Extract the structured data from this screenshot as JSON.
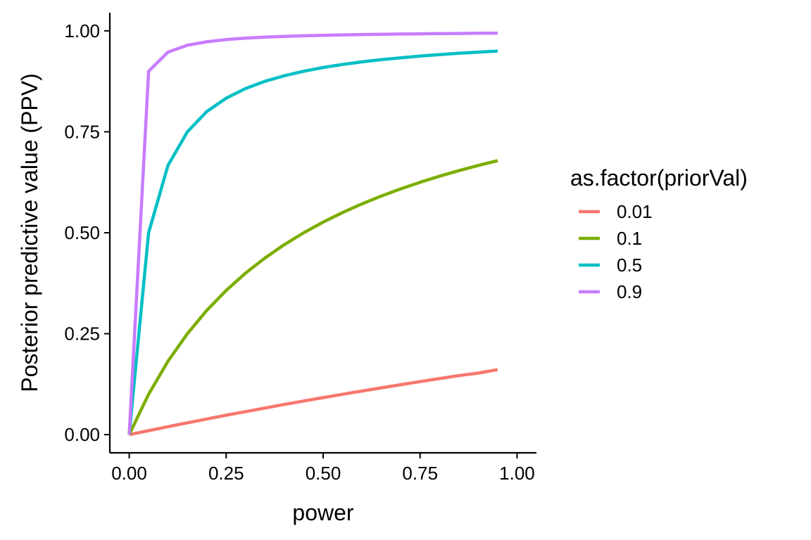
{
  "chart_data": {
    "type": "line",
    "xlabel": "power",
    "ylabel": "Posterior predictive value (PPV)",
    "xlim": [
      -0.05,
      1.05
    ],
    "ylim": [
      -0.045,
      1.045
    ],
    "x_ticks": [
      0,
      0.25,
      0.5,
      0.75,
      1
    ],
    "x_tick_labels": [
      "0.00",
      "0.25",
      "0.50",
      "0.75",
      "1.00"
    ],
    "y_ticks": [
      0,
      0.25,
      0.5,
      0.75,
      1
    ],
    "y_tick_labels": [
      "0.00",
      "0.25",
      "0.50",
      "0.75",
      "1.00"
    ],
    "grid": false,
    "legend": {
      "title": "as.factor(priorVal)",
      "position": "right"
    },
    "x": [
      0,
      0.05,
      0.1,
      0.15,
      0.2,
      0.25,
      0.3,
      0.35,
      0.4,
      0.45,
      0.5,
      0.55,
      0.6,
      0.65,
      0.7,
      0.75,
      0.8,
      0.85,
      0.9,
      0.95
    ],
    "series": [
      {
        "name": "0.01",
        "color": "#F8766D",
        "values": [
          0,
          0.0099,
          0.0198,
          0.0294,
          0.0388,
          0.0481,
          0.0571,
          0.066,
          0.0748,
          0.0833,
          0.0917,
          0.0999,
          0.108,
          0.1159,
          0.1237,
          0.1314,
          0.1389,
          0.1462,
          0.1525,
          0.161
        ]
      },
      {
        "name": "0.1",
        "color": "#7CAE00",
        "values": [
          0,
          0.1,
          0.1818,
          0.25,
          0.3077,
          0.3571,
          0.4,
          0.4375,
          0.4706,
          0.5,
          0.5263,
          0.55,
          0.5714,
          0.5909,
          0.6087,
          0.625,
          0.64,
          0.6538,
          0.6667,
          0.6786
        ]
      },
      {
        "name": "0.5",
        "color": "#00BFC4",
        "values": [
          0,
          0.5,
          0.6667,
          0.75,
          0.8,
          0.8333,
          0.8571,
          0.875,
          0.8889,
          0.9,
          0.9091,
          0.9167,
          0.9231,
          0.9286,
          0.9333,
          0.9375,
          0.9412,
          0.9444,
          0.9474,
          0.95
        ]
      },
      {
        "name": "0.9",
        "color": "#C77CFF",
        "values": [
          0,
          0.9,
          0.9474,
          0.9643,
          0.973,
          0.9783,
          0.9818,
          0.9844,
          0.9863,
          0.9878,
          0.989,
          0.99,
          0.9908,
          0.9915,
          0.9921,
          0.9926,
          0.9931,
          0.9935,
          0.9939,
          0.9942
        ]
      }
    ]
  }
}
